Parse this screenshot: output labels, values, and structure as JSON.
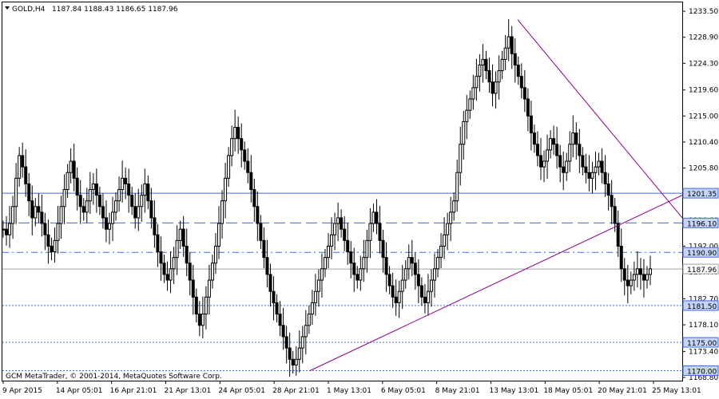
{
  "header": {
    "symbol_label": "GOLD,H4",
    "ohlc_label": "1187.84 1188.43 1186.65 1187.96",
    "copyright": "GCM MetaTrader, © 2001-2014, MetaQuotes Software Corp."
  },
  "chart_data": {
    "type": "candlestick",
    "title": "GOLD,H4",
    "ylim": [
      1168.8,
      1234.5
    ],
    "y_ticks": [
      1233.5,
      1228.9,
      1224.3,
      1219.6,
      1215.0,
      1210.4,
      1205.8,
      1201.2,
      1196.6,
      1192.0,
      1187.4,
      1182.7,
      1178.1,
      1173.4,
      1168.8
    ],
    "x_ticks": [
      "9 Apr 2015",
      "14 Apr 05:01",
      "16 Apr 21:01",
      "21 Apr 13:01",
      "24 Apr 05:01",
      "28 Apr 21:01",
      "1 May 13:01",
      "6 May 05:01",
      "8 May 21:01",
      "13 May 13:01",
      "18 May 05:01",
      "20 May 21:01",
      "25 May 13:01"
    ],
    "horizontal_lines": [
      {
        "price": 1201.35,
        "label": "1201.35",
        "style": "solid",
        "color": "#4169e1"
      },
      {
        "price": 1196.1,
        "label": "1196.10",
        "style": "long-dash",
        "color": "#4169e1"
      },
      {
        "price": 1190.9,
        "label": "1190.90",
        "style": "dash-dot",
        "color": "#4169e1"
      },
      {
        "price": 1187.96,
        "label": "1187.96",
        "style": "solid",
        "color": "#a0a0a0"
      },
      {
        "price": 1181.5,
        "label": "1181.50",
        "style": "dotted",
        "color": "#4169e1"
      },
      {
        "price": 1175.0,
        "label": "1175.00",
        "style": "dotted",
        "color": "#4169e1"
      },
      {
        "price": 1170.0,
        "label": "1170.00",
        "style": "dotted",
        "color": "#4169e1"
      }
    ],
    "trendlines": [
      {
        "from": [
          "1 May 13:01",
          1170.0
        ],
        "to": [
          null,
          1201.0
        ],
        "color": "#8b008b"
      },
      {
        "from": [
          "18 May 05:01",
          1232.0
        ],
        "to": [
          null,
          1197.0
        ],
        "color": "#8b008b"
      }
    ],
    "closes": [
      1195,
      1194,
      1196,
      1199,
      1204,
      1208,
      1206,
      1203,
      1200,
      1197,
      1199,
      1198,
      1196,
      1194,
      1192,
      1191,
      1193,
      1196,
      1199,
      1202,
      1205,
      1207,
      1204,
      1201,
      1199,
      1198,
      1200,
      1202,
      1203,
      1201,
      1199,
      1197,
      1195,
      1196,
      1198,
      1200,
      1202,
      1204,
      1203,
      1201,
      1199,
      1197,
      1199,
      1201,
      1203,
      1200,
      1197,
      1194,
      1191,
      1189,
      1187,
      1186,
      1188,
      1190,
      1193,
      1195,
      1192,
      1189,
      1186,
      1183,
      1180,
      1178,
      1180,
      1183,
      1186,
      1189,
      1192,
      1196,
      1200,
      1204,
      1208,
      1211,
      1213,
      1211,
      1209,
      1207,
      1205,
      1202,
      1199,
      1196,
      1193,
      1190,
      1187,
      1184,
      1182,
      1180,
      1178,
      1176,
      1174,
      1172,
      1171,
      1172,
      1174,
      1176,
      1178,
      1180,
      1182,
      1184,
      1186,
      1188,
      1190,
      1192,
      1194,
      1196,
      1197,
      1195,
      1193,
      1191,
      1189,
      1187,
      1186,
      1188,
      1190,
      1193,
      1196,
      1198,
      1196,
      1193,
      1190,
      1187,
      1185,
      1183,
      1182,
      1184,
      1186,
      1188,
      1190,
      1189,
      1187,
      1185,
      1183,
      1182,
      1184,
      1186,
      1188,
      1190,
      1192,
      1194,
      1196,
      1198,
      1200,
      1205,
      1210,
      1214,
      1216,
      1218,
      1220,
      1222,
      1224,
      1225,
      1223,
      1221,
      1219,
      1221,
      1223,
      1225,
      1227,
      1229,
      1226,
      1224,
      1222,
      1220,
      1218,
      1215,
      1212,
      1210,
      1208,
      1206,
      1207,
      1209,
      1211,
      1210,
      1208,
      1206,
      1205,
      1207,
      1210,
      1212,
      1210,
      1208,
      1206,
      1205,
      1204,
      1205,
      1206,
      1207,
      1205,
      1203,
      1201,
      1199,
      1196,
      1192,
      1188,
      1186,
      1185,
      1186,
      1187,
      1188,
      1187,
      1186,
      1187,
      1188
    ]
  }
}
